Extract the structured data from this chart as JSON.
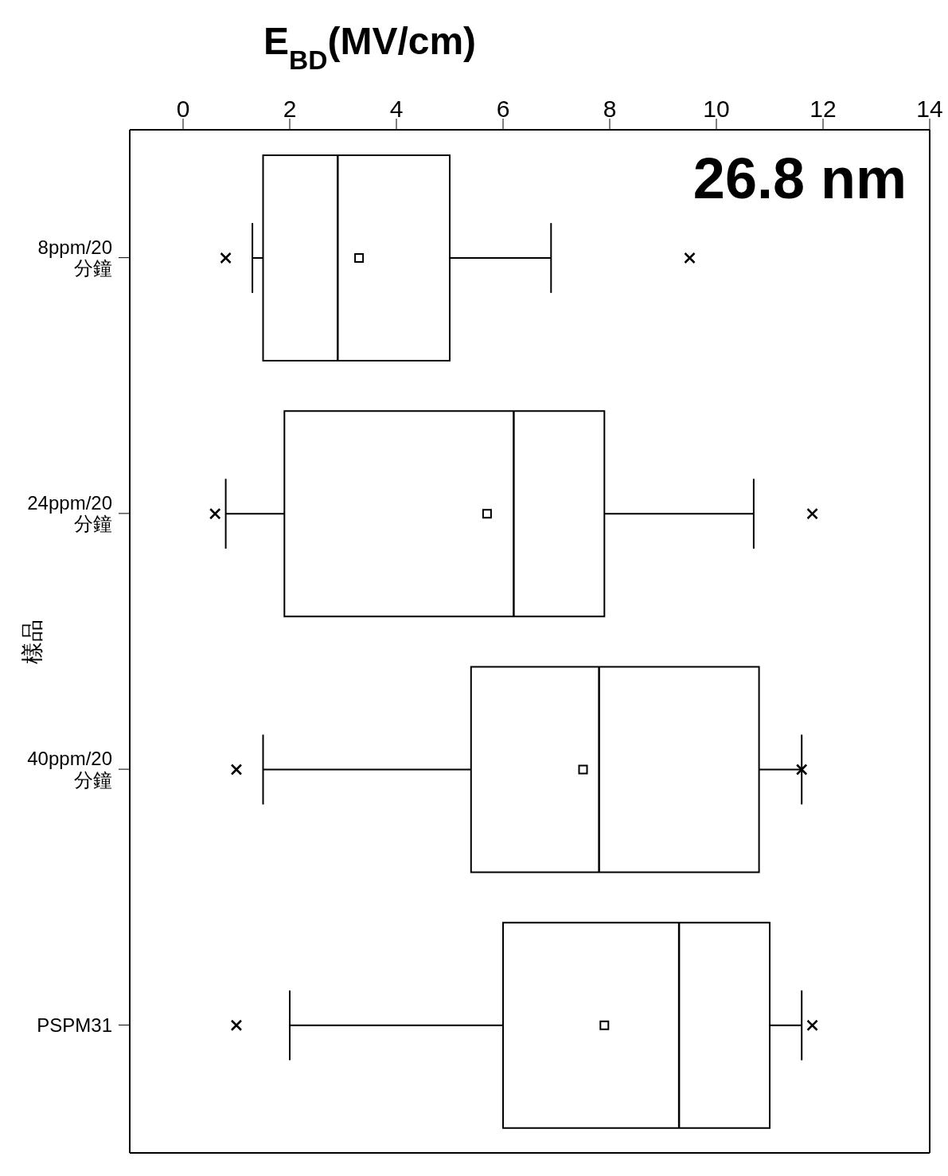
{
  "chart_data": {
    "type": "box",
    "orientation": "horizontal",
    "title": "26.8 nm",
    "xlabel": "E$_{BD}$(MV/cm)",
    "ylabel": "樣品",
    "categories": [
      "8ppm/20 分鐘",
      "24ppm/20 分鐘",
      "40ppm/20 分鐘",
      "PSPM31"
    ],
    "xlim": [
      -1,
      14
    ],
    "xticks": [
      0,
      2,
      4,
      6,
      8,
      10,
      12,
      14
    ],
    "boxes": [
      {
        "low": 1.3,
        "q1": 1.5,
        "median": 2.9,
        "q3": 5.0,
        "high": 6.9,
        "mean": 3.3,
        "outliers": [
          0.8,
          9.5
        ]
      },
      {
        "low": 0.8,
        "q1": 1.9,
        "median": 6.2,
        "q3": 7.9,
        "high": 10.7,
        "mean": 5.7,
        "outliers": [
          0.6,
          11.8
        ]
      },
      {
        "low": 1.5,
        "q1": 5.4,
        "median": 7.8,
        "q3": 10.8,
        "high": 11.6,
        "mean": 7.5,
        "outliers": [
          1.0,
          11.6
        ]
      },
      {
        "low": 2.0,
        "q1": 6.0,
        "median": 9.3,
        "q3": 11.0,
        "high": 11.6,
        "mean": 7.9,
        "outliers": [
          1.0,
          11.8
        ]
      }
    ]
  }
}
